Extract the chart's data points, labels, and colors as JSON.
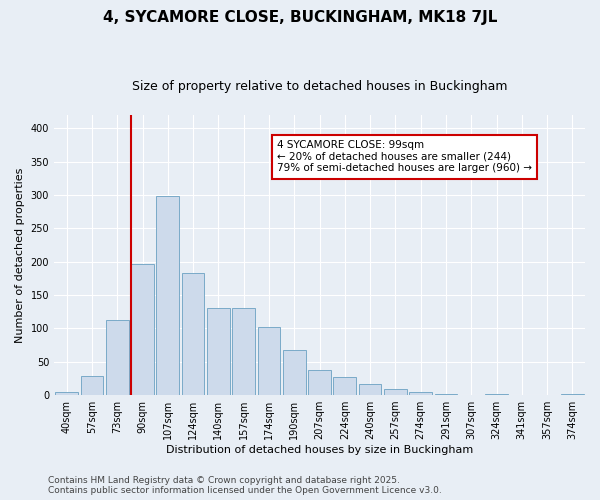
{
  "title": "4, SYCAMORE CLOSE, BUCKINGHAM, MK18 7JL",
  "subtitle": "Size of property relative to detached houses in Buckingham",
  "xlabel": "Distribution of detached houses by size in Buckingham",
  "ylabel": "Number of detached properties",
  "categories": [
    "40sqm",
    "57sqm",
    "73sqm",
    "90sqm",
    "107sqm",
    "124sqm",
    "140sqm",
    "157sqm",
    "174sqm",
    "190sqm",
    "207sqm",
    "224sqm",
    "240sqm",
    "257sqm",
    "274sqm",
    "291sqm",
    "307sqm",
    "324sqm",
    "341sqm",
    "357sqm",
    "374sqm"
  ],
  "values": [
    5,
    29,
    112,
    197,
    299,
    183,
    130,
    130,
    102,
    68,
    37,
    27,
    16,
    9,
    4,
    1,
    0,
    1,
    0,
    0,
    2
  ],
  "bar_color": "#cddaeb",
  "bar_edge_color": "#7aaac8",
  "vline_color": "#cc0000",
  "vline_x_index": 3,
  "annotation_text": "4 SYCAMORE CLOSE: 99sqm\n← 20% of detached houses are smaller (244)\n79% of semi-detached houses are larger (960) →",
  "annotation_box_facecolor": "#ffffff",
  "annotation_box_edgecolor": "#cc0000",
  "ylim": [
    0,
    420
  ],
  "yticks": [
    0,
    50,
    100,
    150,
    200,
    250,
    300,
    350,
    400
  ],
  "background_color": "#e8eef5",
  "grid_color": "#ffffff",
  "title_fontsize": 11,
  "subtitle_fontsize": 9,
  "axis_label_fontsize": 8,
  "tick_fontsize": 7,
  "annotation_fontsize": 7.5,
  "footer_fontsize": 6.5,
  "footer_text": "Contains HM Land Registry data © Crown copyright and database right 2025.\nContains public sector information licensed under the Open Government Licence v3.0."
}
